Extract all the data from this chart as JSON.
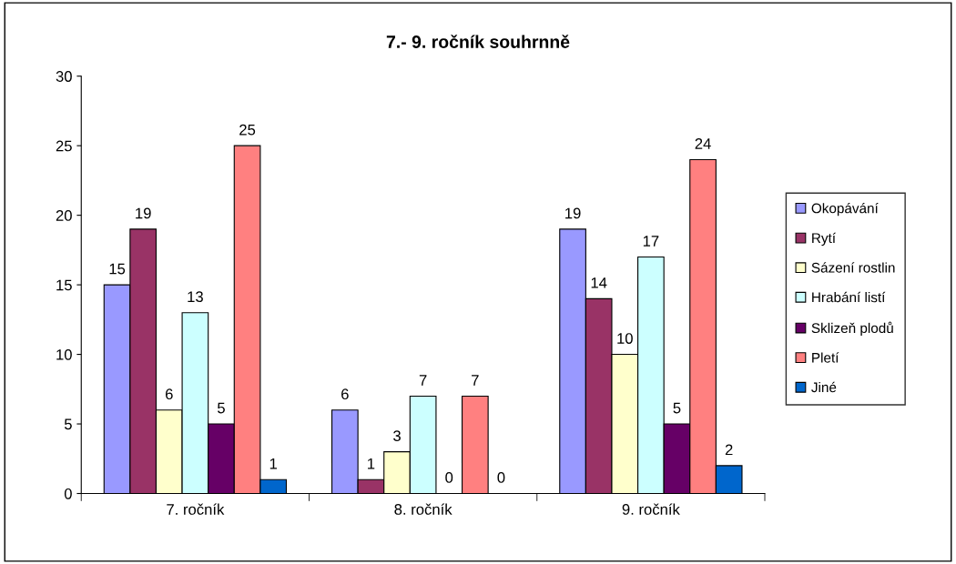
{
  "chart_data": {
    "type": "bar",
    "title": "7.- 9. ročník souhrnně",
    "categories": [
      "7. ročník",
      "8. ročník",
      "9. ročník"
    ],
    "series": [
      {
        "name": "Okopávání",
        "color": "#9999ff",
        "values": [
          15,
          6,
          19
        ]
      },
      {
        "name": "Rytí",
        "color": "#993366",
        "values": [
          19,
          1,
          14
        ]
      },
      {
        "name": "Sázení rostlin",
        "color": "#ffffcc",
        "values": [
          6,
          3,
          10
        ]
      },
      {
        "name": "Hrabání listí",
        "color": "#ccffff",
        "values": [
          13,
          7,
          17
        ]
      },
      {
        "name": "Sklizeň plodů",
        "color": "#660066",
        "values": [
          5,
          0,
          5
        ]
      },
      {
        "name": "Pletí",
        "color": "#ff8080",
        "values": [
          25,
          7,
          24
        ]
      },
      {
        "name": "Jiné",
        "color": "#0066cc",
        "values": [
          1,
          0,
          2
        ]
      }
    ],
    "ylim": [
      0,
      30
    ],
    "yticks": [
      0,
      5,
      10,
      15,
      20,
      25,
      30
    ],
    "grid": false,
    "legend": "right",
    "data_labels": true
  }
}
